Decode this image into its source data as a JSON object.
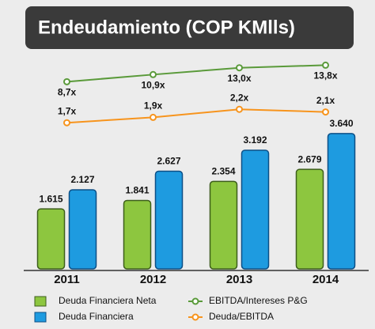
{
  "chart_data": {
    "type": "bar",
    "title": "Endeudamiento (COP KMlls)",
    "categories": [
      "2011",
      "2012",
      "2013",
      "2014"
    ],
    "series": [
      {
        "name": "Deuda Financiera Neta",
        "color": "#8dc63f",
        "values": [
          1615,
          1841,
          2354,
          2679
        ],
        "value_labels": [
          "1.615",
          "1.841",
          "2.354",
          "2.679"
        ]
      },
      {
        "name": "Deuda Financiera",
        "color": "#1e9be0",
        "values": [
          2127,
          2627,
          3192,
          3640
        ],
        "value_labels": [
          "2.127",
          "2.627",
          "3.192",
          "3.640"
        ]
      },
      {
        "name": "EBITDA/Intereses P&G",
        "type": "line",
        "color": "#5a9a3a",
        "values": [
          8.7,
          10.9,
          13.0,
          13.8
        ],
        "value_labels": [
          "8,7x",
          "10,9x",
          "13,0x",
          "13,8x"
        ]
      },
      {
        "name": "Deuda/EBITDA",
        "type": "line",
        "color": "#f7941d",
        "values": [
          1.7,
          1.9,
          2.2,
          2.1
        ],
        "value_labels": [
          "1,7x",
          "1,9x",
          "2,2x",
          "2,1x"
        ]
      }
    ]
  }
}
